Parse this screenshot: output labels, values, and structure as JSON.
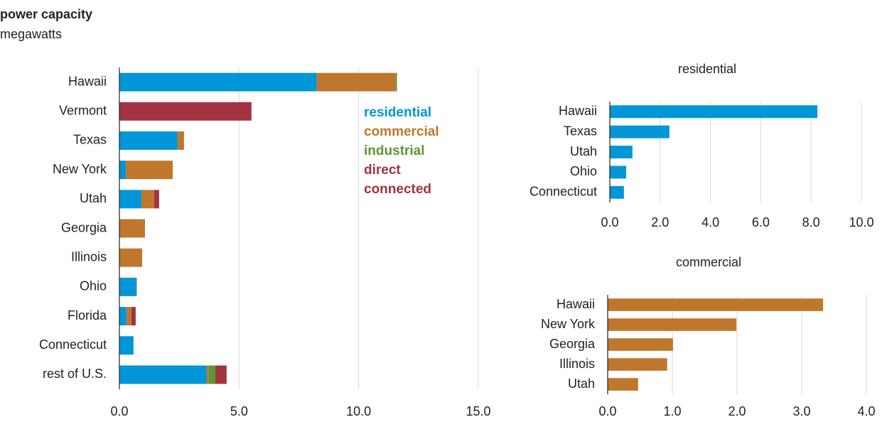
{
  "header": {
    "title": "power capacity",
    "subtitle": "megawatts"
  },
  "chart_data": [
    {
      "type": "bar",
      "stacked": true,
      "legend": "inside",
      "categories": [
        "Hawaii",
        "Vermont",
        "Texas",
        "New York",
        "Utah",
        "Georgia",
        "Illinois",
        "Ohio",
        "Florida",
        "Connecticut",
        "rest of U.S."
      ],
      "series": [
        {
          "name": "residential",
          "color": "#0096d7",
          "values": [
            8.25,
            0,
            2.43,
            0.27,
            0.92,
            0,
            0,
            0.71,
            0.3,
            0.59,
            3.65
          ]
        },
        {
          "name": "commercial",
          "color": "#bf772d",
          "values": [
            3.3,
            0,
            0.27,
            1.96,
            0.53,
            1.07,
            0.95,
            0.02,
            0.2,
            0,
            0.09
          ]
        },
        {
          "name": "industrial",
          "color": "#5d9732",
          "values": [
            0.05,
            0,
            0,
            0,
            0,
            0,
            0,
            0,
            0,
            0,
            0.27
          ]
        },
        {
          "name": "direct connected",
          "color": "#a33340",
          "values": [
            0,
            5.52,
            0,
            0,
            0.21,
            0,
            0,
            0,
            0.18,
            0,
            0.47
          ]
        }
      ],
      "xlim": [
        0,
        15
      ],
      "xticks": [
        {
          "value": 0,
          "label": "0.0"
        },
        {
          "value": 5,
          "label": "5.0"
        },
        {
          "value": 10,
          "label": "10.0"
        },
        {
          "value": 15,
          "label": "15.0"
        }
      ],
      "grid": true
    },
    {
      "type": "bar",
      "title": "residential",
      "color": "#0096d7",
      "categories": [
        "Hawaii",
        "Texas",
        "Utah",
        "Ohio",
        "Connecticut"
      ],
      "values": [
        8.25,
        2.37,
        0.9,
        0.65,
        0.56
      ],
      "xlim": [
        0,
        10
      ],
      "xticks": [
        {
          "value": 0,
          "label": "0.0"
        },
        {
          "value": 2,
          "label": "2.0"
        },
        {
          "value": 4,
          "label": "4.0"
        },
        {
          "value": 6,
          "label": "6.0"
        },
        {
          "value": 8,
          "label": "8.0"
        },
        {
          "value": 10,
          "label": "10.0"
        }
      ],
      "grid": true
    },
    {
      "type": "bar",
      "title": "commercial",
      "color": "#bf772d",
      "categories": [
        "Hawaii",
        "New York",
        "Georgia",
        "Illinois",
        "Utah"
      ],
      "values": [
        3.33,
        1.99,
        1.01,
        0.92,
        0.47
      ],
      "xlim": [
        0,
        4
      ],
      "xticks": [
        {
          "value": 0,
          "label": "0.0"
        },
        {
          "value": 1,
          "label": "1.0"
        },
        {
          "value": 2,
          "label": "2.0"
        },
        {
          "value": 3,
          "label": "3.0"
        },
        {
          "value": 4,
          "label": "4.0"
        }
      ],
      "grid": true
    }
  ]
}
